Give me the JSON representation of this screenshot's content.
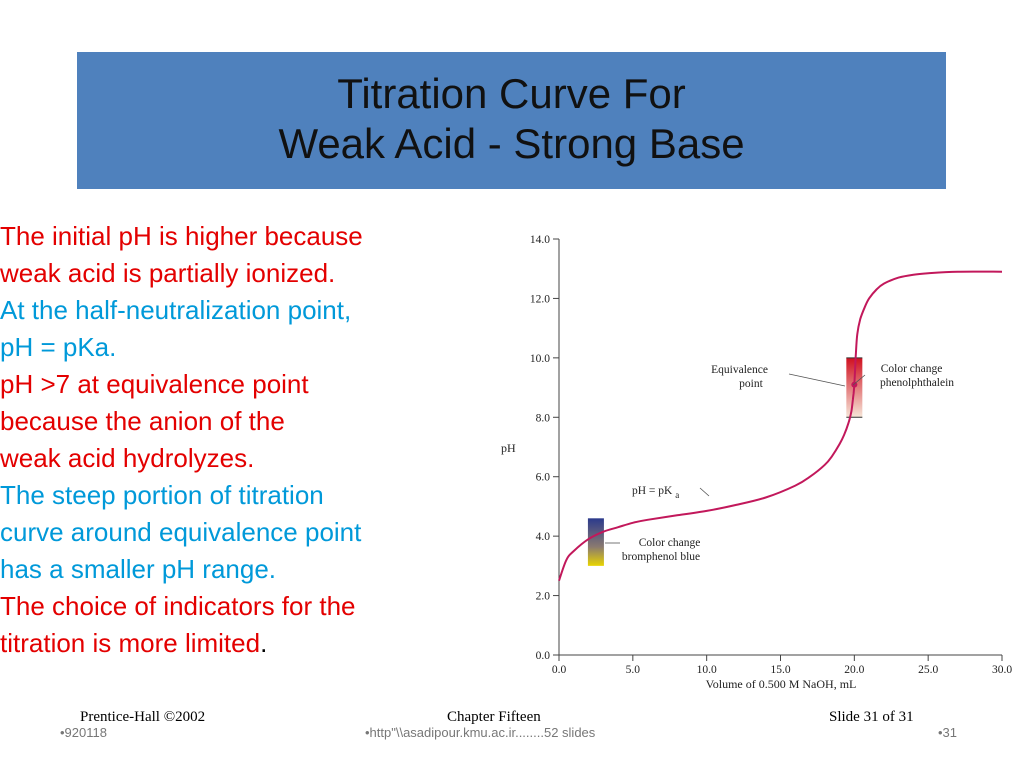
{
  "title": {
    "line1": "Titration Curve For",
    "line2": "Weak Acid - Strong Base"
  },
  "bullets": [
    {
      "color": "#e30000",
      "lines": [
        "The initial pH is higher because",
        " weak acid is partially ionized."
      ]
    },
    {
      "color": "#0099d9",
      "lines": [
        " At the half-neutralization point,",
        "pH = pKa."
      ]
    },
    {
      "color": "#e30000",
      "lines": [
        "pH >7 at equivalence point",
        "because the anion of the",
        "weak acid hydrolyzes."
      ]
    },
    {
      "color": "#0099d9",
      "lines": [
        " The steep portion of titration",
        "curve around equivalence point",
        "has a  smaller pH range."
      ]
    },
    {
      "color": "#e30000",
      "lines": [
        " The choice of indicators for the",
        "titration is more limited"
      ],
      "trailing": "."
    }
  ],
  "footer": {
    "left": "Prentice-Hall  ©2002",
    "center": "Chapter Fifteen",
    "right": "Slide 31 of 31"
  },
  "subfooter": {
    "left": "•920118",
    "center": "•http\"\\\\asadipour.kmu.ac.ir........52 slides",
    "right": "•31"
  },
  "colors": {
    "title_bg": "#4f81bd",
    "curve": "#c2185b",
    "red_text": "#e30000",
    "cyan_text": "#0099d9"
  },
  "chart_data": {
    "type": "line",
    "xlabel": "Volume of 0.500 M NaOH, mL",
    "ylabel": "pH",
    "xlim": [
      0,
      30
    ],
    "ylim": [
      0,
      14
    ],
    "xticks": [
      "0.0",
      "5.0",
      "10.0",
      "15.0",
      "20.0",
      "25.0",
      "30.0"
    ],
    "yticks": [
      "0.0",
      "2.0",
      "4.0",
      "6.0",
      "8.0",
      "10.0",
      "12.0",
      "14.0"
    ],
    "grid": false,
    "series": [
      {
        "x": [
          0,
          0.5,
          1,
          2,
          3,
          4,
          5,
          6,
          8,
          10,
          12,
          14,
          16,
          17,
          18,
          18.5,
          19,
          19.3,
          19.6,
          19.8,
          19.9,
          19.95,
          20,
          20.05,
          20.1,
          20.2,
          20.4,
          20.7,
          21,
          21.5,
          22,
          23,
          24,
          25,
          27,
          30
        ],
        "y": [
          2.5,
          3.2,
          3.5,
          3.9,
          4.15,
          4.3,
          4.45,
          4.55,
          4.7,
          4.85,
          5.05,
          5.3,
          5.7,
          6.0,
          6.4,
          6.7,
          7.1,
          7.4,
          7.8,
          8.2,
          8.6,
          8.8,
          9.1,
          9.6,
          10.1,
          10.8,
          11.3,
          11.7,
          12.0,
          12.3,
          12.5,
          12.7,
          12.8,
          12.85,
          12.9,
          12.9
        ]
      }
    ],
    "markers": [
      {
        "x": 20,
        "y": 9.1
      }
    ],
    "indicators": [
      {
        "name": "phenolphthalein",
        "x": 20,
        "pH_range": [
          8.0,
          10.0
        ],
        "colors": [
          "#d01020",
          "#f6e6d8"
        ]
      },
      {
        "name": "bromphenol blue",
        "x": 2.5,
        "pH_range": [
          3.0,
          4.6
        ],
        "colors": [
          "#2b3a8c",
          "#e8d400"
        ]
      }
    ],
    "annotations": [
      {
        "text": [
          "Equivalence",
          "point"
        ]
      },
      {
        "text": [
          "Color change",
          "phenolphthalein"
        ]
      },
      {
        "text": [
          "pH = pK",
          "a"
        ]
      },
      {
        "text": [
          "Color change",
          "bromphenol blue"
        ]
      }
    ]
  }
}
